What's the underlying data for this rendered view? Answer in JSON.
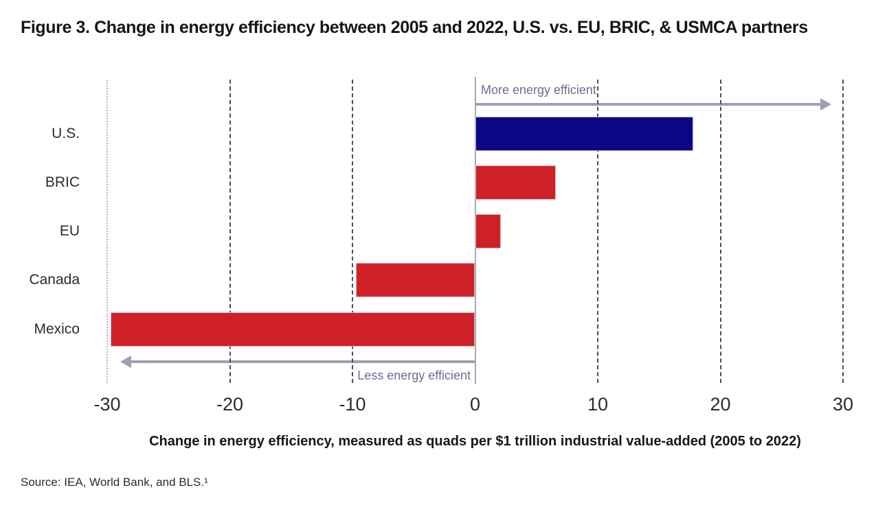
{
  "figure": {
    "title": "Figure 3. Change in energy efficiency between 2005 and 2022, U.S. vs. EU, BRIC, & USMCA partners",
    "source": "Source: IEA, World Bank, and BLS.¹"
  },
  "chart_data": {
    "type": "bar",
    "orientation": "horizontal",
    "title": "Figure 3. Change in energy efficiency between 2005 and 2022, U.S. vs. EU, BRIC, & USMCA partners",
    "categories": [
      "U.S.",
      "BRIC",
      "EU",
      "Canada",
      "Mexico"
    ],
    "values": [
      17.8,
      6.6,
      2.1,
      -9.7,
      -29.7
    ],
    "bar_colors": [
      "#0a0787",
      "#ce2127",
      "#ce2127",
      "#ce2127",
      "#ce2127"
    ],
    "xlabel": "Change in energy efficiency, measured as quads per $1 trillion industrial value-added (2005 to 2022)",
    "xlim": [
      -30,
      30
    ],
    "xticks": [
      -30,
      -20,
      -10,
      0,
      10,
      20,
      30
    ],
    "grid": "vertical dashed gridlines, solid zero line",
    "legend": "none",
    "annotations": {
      "positive": "More energy efficient",
      "negative": "Less energy efficient"
    },
    "colors": {
      "us_bar": "#0a0787",
      "other_bar": "#ce2127",
      "annotation_text": "#6b6c95",
      "arrow": "#9ba0b2",
      "gridline_dark": "#4f4f4f",
      "gridline_light": "#b5b5b5",
      "zero_line": "#a9a9b2"
    }
  }
}
